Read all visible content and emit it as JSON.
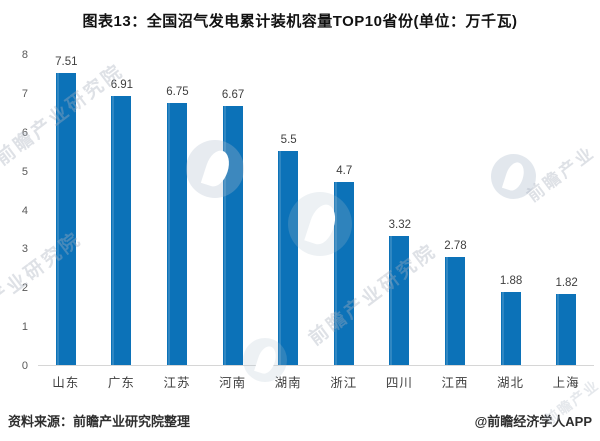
{
  "title": "图表13：全国沼气发电累计装机容量TOP10省份(单位：万千瓦)",
  "footer": {
    "source": "资料来源：前瞻产业研究院整理",
    "brand": "@前瞻经济学人APP"
  },
  "watermark": {
    "text": "前瞻产业研究院",
    "text_short": "前瞻产业",
    "logo": "qianzhan-logo"
  },
  "colors": {
    "bar": "#0c72b8",
    "axis_line": "#d6d6d6",
    "tick_label": "#595959",
    "value_label": "#3f3f3f",
    "category_label": "#3f3f3f",
    "title": "#111111",
    "footer": "#2e2e2e"
  },
  "chart_data": {
    "type": "bar",
    "title": "图表13：全国沼气发电累计装机容量TOP10省份(单位：万千瓦)",
    "unit": "万千瓦",
    "categories": [
      "山东",
      "广东",
      "江苏",
      "河南",
      "湖南",
      "浙江",
      "四川",
      "江西",
      "湖北",
      "上海"
    ],
    "values": [
      7.51,
      6.91,
      6.75,
      6.67,
      5.5,
      4.7,
      3.32,
      2.78,
      1.88,
      1.82
    ],
    "xlabel": "",
    "ylabel": "",
    "ylim": [
      0,
      8
    ],
    "yticks": [
      0,
      1,
      2,
      3,
      4,
      5,
      6,
      7,
      8
    ],
    "grid": false,
    "legend": null,
    "value_labels_shown": true,
    "bar_color": "#0c72b8"
  }
}
